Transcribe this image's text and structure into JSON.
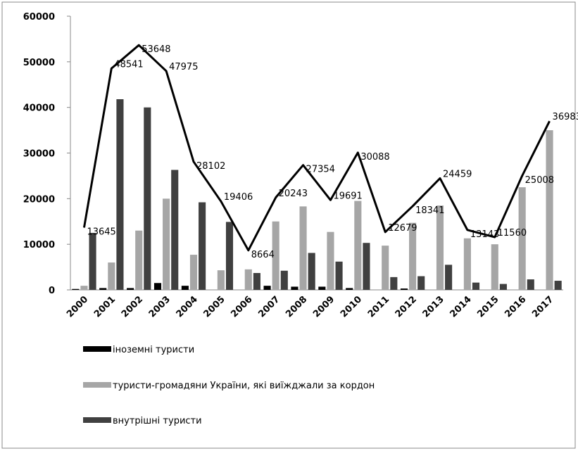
{
  "chart_data": {
    "type": "bar_line",
    "categories": [
      "2000",
      "2001",
      "2002",
      "2003",
      "2004",
      "2005",
      "2006",
      "2007",
      "2008",
      "2009",
      "2010",
      "2011",
      "2012",
      "2013",
      "2014",
      "2015",
      "2016",
      "2017"
    ],
    "series": [
      {
        "name": "іноземні туристи",
        "color": "#000000",
        "values": [
          200,
          400,
          400,
          1500,
          900,
          0,
          0,
          900,
          700,
          700,
          400,
          0,
          300,
          0,
          0,
          0,
          0,
          0
        ]
      },
      {
        "name": "туристи-громадяни України, які виїжджали за кордон",
        "color": "#a6a6a6",
        "values": [
          900,
          6000,
          13000,
          20000,
          7700,
          4300,
          4500,
          15000,
          18300,
          12700,
          19500,
          9700,
          14700,
          18500,
          11300,
          10000,
          22500,
          35000
        ]
      },
      {
        "name": "внутрішні туристи",
        "color": "#404040",
        "values": [
          12500,
          41800,
          40000,
          26300,
          19200,
          14900,
          3700,
          4200,
          8100,
          6200,
          10300,
          2800,
          3000,
          5500,
          1600,
          1300,
          2300,
          2000
        ]
      }
    ],
    "line": {
      "color": "#000000",
      "values": [
        13645,
        48541,
        53648,
        47975,
        28102,
        19406,
        8664,
        20243,
        27354,
        19691,
        30088,
        12679,
        18341,
        24459,
        13143,
        11560,
        25008,
        36983
      ]
    },
    "ylim": [
      0,
      60000
    ],
    "yticks": [
      0,
      10000,
      20000,
      30000,
      40000,
      50000,
      60000
    ],
    "grid": false
  }
}
